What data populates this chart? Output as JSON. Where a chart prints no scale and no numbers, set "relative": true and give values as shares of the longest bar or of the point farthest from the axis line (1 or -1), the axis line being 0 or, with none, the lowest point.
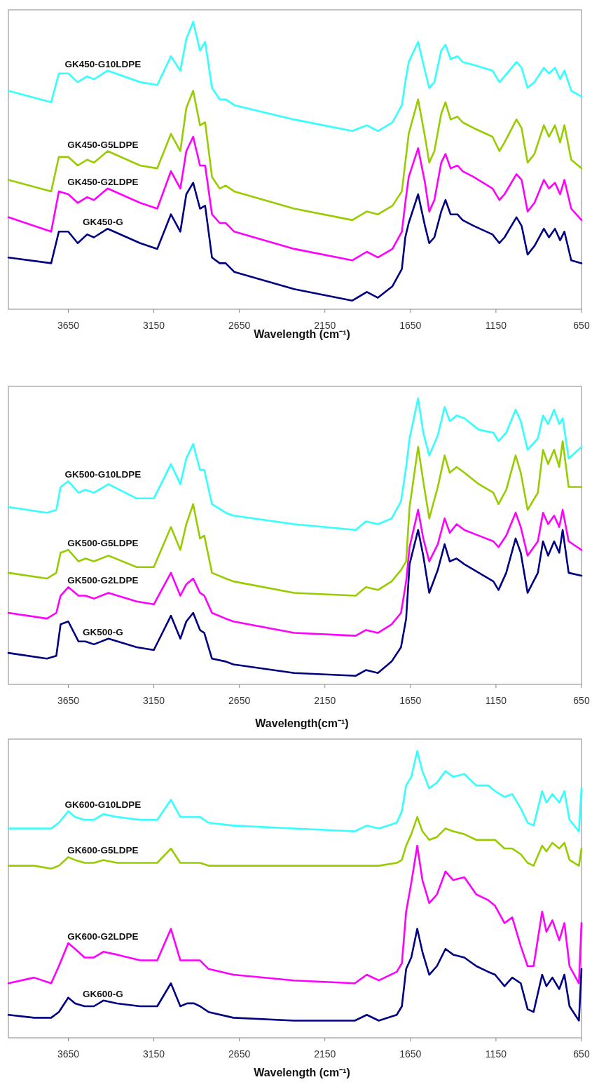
{
  "chart_data": [
    {
      "type": "line",
      "relative": true,
      "xlim": [
        4000,
        650
      ],
      "xticks": [
        3650,
        3150,
        2650,
        2150,
        1650,
        1150,
        650
      ],
      "xlabel": "Wavelength (cm⁻¹)",
      "x": [
        4000,
        3750,
        3705,
        3650,
        3595,
        3540,
        3500,
        3420,
        3230,
        3130,
        3050,
        2995,
        2960,
        2920,
        2880,
        2850,
        2810,
        2765,
        2730,
        2680,
        2330,
        1990,
        1905,
        1840,
        1755,
        1700,
        1680,
        1660,
        1605,
        1565,
        1540,
        1510,
        1470,
        1445,
        1415,
        1375,
        1345,
        1280,
        1170,
        1130,
        1100,
        1030,
        1000,
        965,
        925,
        870,
        840,
        805,
        775,
        750,
        710,
        650
      ],
      "series": [
        {
          "name": "GK450-G10LDPE",
          "color": "#33ffff",
          "values": [
            0.76,
            0.72,
            0.82,
            0.82,
            0.79,
            0.81,
            0.8,
            0.83,
            0.79,
            0.78,
            0.88,
            0.83,
            0.94,
            1.0,
            0.9,
            0.93,
            0.77,
            0.73,
            0.73,
            0.71,
            0.66,
            0.62,
            0.64,
            0.62,
            0.65,
            0.71,
            0.79,
            0.86,
            0.93,
            0.83,
            0.77,
            0.79,
            0.9,
            0.92,
            0.87,
            0.88,
            0.86,
            0.85,
            0.83,
            0.79,
            0.81,
            0.86,
            0.84,
            0.77,
            0.79,
            0.84,
            0.82,
            0.84,
            0.8,
            0.83,
            0.76,
            0.74
          ]
        },
        {
          "name": "GK450-G5LDPE",
          "color": "#99cc00",
          "values": [
            0.45,
            0.41,
            0.53,
            0.53,
            0.5,
            0.52,
            0.51,
            0.55,
            0.5,
            0.49,
            0.61,
            0.55,
            0.7,
            0.76,
            0.64,
            0.65,
            0.46,
            0.42,
            0.43,
            0.41,
            0.35,
            0.31,
            0.34,
            0.33,
            0.36,
            0.41,
            0.51,
            0.61,
            0.73,
            0.6,
            0.51,
            0.55,
            0.68,
            0.72,
            0.66,
            0.67,
            0.65,
            0.63,
            0.6,
            0.55,
            0.58,
            0.66,
            0.63,
            0.51,
            0.54,
            0.64,
            0.6,
            0.64,
            0.58,
            0.64,
            0.52,
            0.49
          ]
        },
        {
          "name": "GK450-G2LDPE",
          "color": "#ff00ff",
          "values": [
            0.32,
            0.27,
            0.41,
            0.4,
            0.37,
            0.39,
            0.38,
            0.42,
            0.37,
            0.35,
            0.48,
            0.42,
            0.55,
            0.6,
            0.5,
            0.5,
            0.33,
            0.3,
            0.3,
            0.27,
            0.21,
            0.17,
            0.2,
            0.18,
            0.21,
            0.27,
            0.37,
            0.46,
            0.56,
            0.44,
            0.34,
            0.38,
            0.51,
            0.54,
            0.49,
            0.5,
            0.48,
            0.46,
            0.42,
            0.38,
            0.4,
            0.47,
            0.45,
            0.34,
            0.37,
            0.45,
            0.42,
            0.44,
            0.4,
            0.45,
            0.35,
            0.31
          ]
        },
        {
          "name": "GK450-G",
          "color": "#000080",
          "values": [
            0.18,
            0.16,
            0.27,
            0.27,
            0.23,
            0.26,
            0.25,
            0.28,
            0.23,
            0.21,
            0.33,
            0.27,
            0.4,
            0.44,
            0.35,
            0.36,
            0.18,
            0.16,
            0.16,
            0.13,
            0.07,
            0.03,
            0.06,
            0.04,
            0.08,
            0.14,
            0.25,
            0.3,
            0.4,
            0.29,
            0.23,
            0.25,
            0.34,
            0.38,
            0.33,
            0.33,
            0.31,
            0.29,
            0.26,
            0.23,
            0.25,
            0.32,
            0.29,
            0.19,
            0.22,
            0.28,
            0.25,
            0.28,
            0.24,
            0.27,
            0.17,
            0.16
          ]
        }
      ]
    },
    {
      "type": "line",
      "relative": true,
      "xlim": [
        4000,
        650
      ],
      "xticks": [
        3650,
        3150,
        2650,
        2150,
        1650,
        1150,
        650
      ],
      "xlabel": "Wavelength(cm⁻¹)",
      "x": [
        4000,
        3775,
        3720,
        3695,
        3650,
        3590,
        3550,
        3500,
        3415,
        3250,
        3150,
        3050,
        2995,
        2960,
        2920,
        2880,
        2855,
        2810,
        2730,
        2685,
        2330,
        1970,
        1910,
        1840,
        1760,
        1705,
        1675,
        1655,
        1605,
        1575,
        1540,
        1490,
        1450,
        1420,
        1380,
        1335,
        1250,
        1165,
        1135,
        1090,
        1035,
        1005,
        965,
        905,
        875,
        845,
        810,
        780,
        760,
        725,
        650
      ],
      "series": [
        {
          "name": "GK500-G10LDPE",
          "color": "#33ffff",
          "values": [
            0.62,
            0.6,
            0.61,
            0.69,
            0.71,
            0.67,
            0.68,
            0.67,
            0.7,
            0.65,
            0.65,
            0.77,
            0.7,
            0.79,
            0.84,
            0.75,
            0.75,
            0.63,
            0.6,
            0.59,
            0.56,
            0.54,
            0.57,
            0.56,
            0.58,
            0.64,
            0.76,
            0.86,
            1.0,
            0.88,
            0.8,
            0.87,
            0.97,
            0.92,
            0.94,
            0.93,
            0.89,
            0.88,
            0.85,
            0.88,
            0.96,
            0.92,
            0.82,
            0.86,
            0.94,
            0.91,
            0.96,
            0.91,
            0.93,
            0.79,
            0.83
          ]
        },
        {
          "name": "GK500-G5LDPE",
          "color": "#99cc00",
          "values": [
            0.39,
            0.37,
            0.39,
            0.46,
            0.47,
            0.43,
            0.44,
            0.43,
            0.45,
            0.41,
            0.41,
            0.55,
            0.47,
            0.56,
            0.63,
            0.51,
            0.52,
            0.39,
            0.37,
            0.36,
            0.32,
            0.31,
            0.34,
            0.33,
            0.36,
            0.4,
            0.43,
            0.62,
            0.83,
            0.71,
            0.58,
            0.69,
            0.8,
            0.74,
            0.76,
            0.74,
            0.7,
            0.67,
            0.63,
            0.68,
            0.8,
            0.74,
            0.61,
            0.67,
            0.82,
            0.77,
            0.82,
            0.76,
            0.85,
            0.69,
            0.69
          ]
        },
        {
          "name": "GK500-G2LDPE",
          "color": "#ff00ff",
          "values": [
            0.25,
            0.23,
            0.25,
            0.31,
            0.34,
            0.31,
            0.31,
            0.3,
            0.32,
            0.29,
            0.28,
            0.39,
            0.31,
            0.35,
            0.37,
            0.32,
            0.31,
            0.25,
            0.23,
            0.22,
            0.18,
            0.17,
            0.19,
            0.18,
            0.21,
            0.25,
            0.36,
            0.48,
            0.61,
            0.51,
            0.43,
            0.49,
            0.58,
            0.53,
            0.56,
            0.54,
            0.52,
            0.5,
            0.48,
            0.52,
            0.6,
            0.55,
            0.45,
            0.5,
            0.6,
            0.56,
            0.59,
            0.55,
            0.61,
            0.5,
            0.47
          ]
        },
        {
          "name": "GK500-G",
          "color": "#000080",
          "values": [
            0.11,
            0.09,
            0.1,
            0.21,
            0.22,
            0.15,
            0.15,
            0.14,
            0.16,
            0.13,
            0.12,
            0.24,
            0.16,
            0.22,
            0.25,
            0.19,
            0.18,
            0.09,
            0.08,
            0.07,
            0.04,
            0.03,
            0.05,
            0.04,
            0.08,
            0.13,
            0.23,
            0.42,
            0.54,
            0.45,
            0.32,
            0.4,
            0.49,
            0.43,
            0.44,
            0.42,
            0.39,
            0.36,
            0.33,
            0.39,
            0.51,
            0.46,
            0.32,
            0.39,
            0.5,
            0.45,
            0.5,
            0.46,
            0.54,
            0.39,
            0.38
          ]
        }
      ]
    },
    {
      "type": "line",
      "relative": true,
      "xlim": [
        4000,
        650
      ],
      "xticks": [
        3650,
        3150,
        2650,
        2150,
        1650,
        1150,
        650
      ],
      "xlabel": "Wavelength (cm⁻¹)",
      "x": [
        4000,
        3850,
        3750,
        3705,
        3650,
        3610,
        3555,
        3500,
        3445,
        3365,
        3230,
        3130,
        3050,
        2995,
        2955,
        2915,
        2880,
        2830,
        2685,
        2330,
        1975,
        1905,
        1835,
        1730,
        1700,
        1675,
        1645,
        1610,
        1580,
        1540,
        1495,
        1445,
        1400,
        1335,
        1265,
        1195,
        1155,
        1100,
        1055,
        1005,
        965,
        930,
        880,
        855,
        820,
        780,
        750,
        720,
        665,
        650
      ],
      "series": [
        {
          "name": "GK600-G10LDPE",
          "color": "#33ffff",
          "values": [
            0.73,
            0.73,
            0.73,
            0.75,
            0.79,
            0.77,
            0.76,
            0.76,
            0.78,
            0.77,
            0.76,
            0.76,
            0.83,
            0.77,
            0.77,
            0.77,
            0.77,
            0.75,
            0.74,
            0.73,
            0.72,
            0.74,
            0.73,
            0.75,
            0.79,
            0.88,
            0.91,
            1.0,
            0.93,
            0.87,
            0.89,
            0.93,
            0.91,
            0.92,
            0.88,
            0.88,
            0.86,
            0.84,
            0.85,
            0.8,
            0.75,
            0.74,
            0.86,
            0.82,
            0.85,
            0.82,
            0.86,
            0.76,
            0.72,
            0.87
          ]
        },
        {
          "name": "GK600-G5LDPE",
          "color": "#99cc00",
          "values": [
            0.6,
            0.6,
            0.59,
            0.6,
            0.63,
            0.62,
            0.61,
            0.61,
            0.62,
            0.61,
            0.61,
            0.61,
            0.66,
            0.61,
            0.61,
            0.61,
            0.61,
            0.6,
            0.6,
            0.6,
            0.6,
            0.6,
            0.6,
            0.61,
            0.62,
            0.67,
            0.71,
            0.77,
            0.72,
            0.69,
            0.7,
            0.73,
            0.72,
            0.71,
            0.69,
            0.69,
            0.69,
            0.66,
            0.66,
            0.64,
            0.61,
            0.6,
            0.67,
            0.65,
            0.68,
            0.66,
            0.68,
            0.62,
            0.6,
            0.66
          ]
        },
        {
          "name": "GK600-G2LDPE",
          "color": "#ff00ff",
          "values": [
            0.19,
            0.21,
            0.19,
            0.25,
            0.33,
            0.31,
            0.28,
            0.28,
            0.3,
            0.29,
            0.27,
            0.27,
            0.38,
            0.27,
            0.27,
            0.27,
            0.27,
            0.24,
            0.22,
            0.2,
            0.19,
            0.22,
            0.2,
            0.23,
            0.26,
            0.44,
            0.54,
            0.67,
            0.55,
            0.47,
            0.5,
            0.58,
            0.55,
            0.56,
            0.5,
            0.48,
            0.46,
            0.4,
            0.42,
            0.32,
            0.25,
            0.25,
            0.44,
            0.37,
            0.41,
            0.34,
            0.4,
            0.25,
            0.19,
            0.4
          ]
        },
        {
          "name": "GK600-G",
          "color": "#000080",
          "values": [
            0.08,
            0.07,
            0.07,
            0.09,
            0.14,
            0.12,
            0.11,
            0.11,
            0.13,
            0.12,
            0.11,
            0.11,
            0.19,
            0.11,
            0.12,
            0.12,
            0.11,
            0.09,
            0.07,
            0.06,
            0.06,
            0.08,
            0.06,
            0.08,
            0.11,
            0.24,
            0.28,
            0.38,
            0.3,
            0.22,
            0.25,
            0.31,
            0.29,
            0.28,
            0.25,
            0.23,
            0.22,
            0.18,
            0.21,
            0.19,
            0.1,
            0.09,
            0.22,
            0.18,
            0.21,
            0.17,
            0.22,
            0.11,
            0.06,
            0.24
          ]
        }
      ]
    }
  ]
}
